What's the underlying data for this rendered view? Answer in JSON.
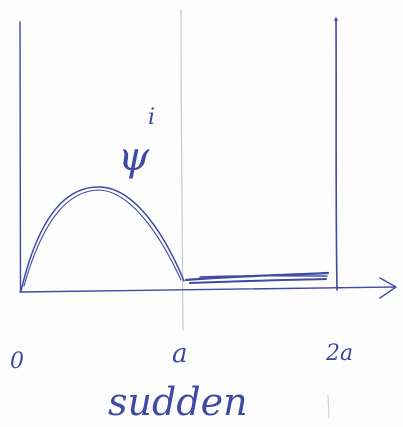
{
  "sketch": {
    "ink_color": "#3f4aa3",
    "faint_color": "#c9c9cf",
    "psi_label": "ψ",
    "psi_superscript": "i",
    "tick_labels": {
      "origin": "0",
      "a": "a",
      "two_a": "2a"
    },
    "caption": "sudden"
  }
}
